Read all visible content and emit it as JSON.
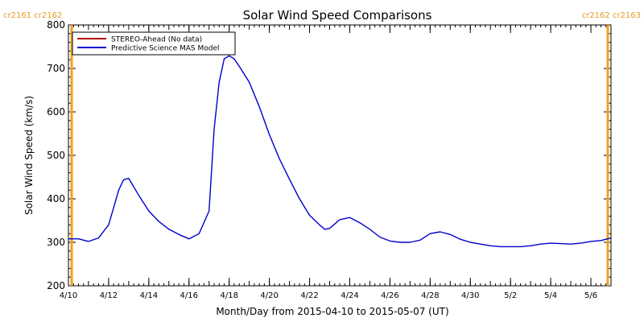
{
  "chart_data": {
    "type": "line",
    "title": "Solar Wind Speed Comparisons",
    "xlabel": "Month/Day from 2015-04-10 to 2015-05-07 (UT)",
    "ylabel": "Solar Wind Speed (km/s)",
    "start_date": "2015-04-10",
    "end_date": "2015-05-07",
    "ylim": [
      200,
      800
    ],
    "y_ticks": [
      "200",
      "300",
      "400",
      "500",
      "600",
      "700",
      "800"
    ],
    "x_ticks": [
      {
        "label": "4/10",
        "date": "2015-04-10"
      },
      {
        "label": "4/12",
        "date": "2015-04-12"
      },
      {
        "label": "4/14",
        "date": "2015-04-14"
      },
      {
        "label": "4/16",
        "date": "2015-04-16"
      },
      {
        "label": "4/18",
        "date": "2015-04-18"
      },
      {
        "label": "4/20",
        "date": "2015-04-20"
      },
      {
        "label": "4/22",
        "date": "2015-04-22"
      },
      {
        "label": "4/24",
        "date": "2015-04-24"
      },
      {
        "label": "4/26",
        "date": "2015-04-26"
      },
      {
        "label": "4/28",
        "date": "2015-04-28"
      },
      {
        "label": "4/30",
        "date": "2015-04-30"
      },
      {
        "label": "5/2",
        "date": "2015-05-02"
      },
      {
        "label": "5/4",
        "date": "2015-05-04"
      },
      {
        "label": "5/6",
        "date": "2015-05-06"
      }
    ],
    "rotation_markers": [
      {
        "date": "2015-04-10",
        "labels": [
          "cr2161",
          "cr2162"
        ],
        "align": "left"
      },
      {
        "date": "2015-05-07",
        "labels": [
          "cr2162",
          "cr2163"
        ],
        "align": "right"
      }
    ],
    "legend_position": "top-left",
    "series": [
      {
        "name": "STEREO-Ahead (No data)",
        "color": "#b00000",
        "x": [],
        "y": []
      },
      {
        "name": "Predictive Science MAS Model",
        "color": "#0000cc",
        "x": [
          "2015-04-10 00:00",
          "2015-04-10 12:00",
          "2015-04-11 00:00",
          "2015-04-11 12:00",
          "2015-04-12 00:00",
          "2015-04-12 06:00",
          "2015-04-12 12:00",
          "2015-04-12 18:00",
          "2015-04-13 00:00",
          "2015-04-13 12:00",
          "2015-04-14 00:00",
          "2015-04-14 12:00",
          "2015-04-15 00:00",
          "2015-04-15 12:00",
          "2015-04-16 00:00",
          "2015-04-16 12:00",
          "2015-04-17 00:00",
          "2015-04-17 06:00",
          "2015-04-17 12:00",
          "2015-04-17 18:00",
          "2015-04-18 00:00",
          "2015-04-18 06:00",
          "2015-04-18 12:00",
          "2015-04-19 00:00",
          "2015-04-19 12:00",
          "2015-04-20 00:00",
          "2015-04-20 12:00",
          "2015-04-21 00:00",
          "2015-04-21 12:00",
          "2015-04-22 00:00",
          "2015-04-22 12:00",
          "2015-04-22 18:00",
          "2015-04-23 00:00",
          "2015-04-23 12:00",
          "2015-04-24 00:00",
          "2015-04-24 12:00",
          "2015-04-25 00:00",
          "2015-04-25 12:00",
          "2015-04-26 00:00",
          "2015-04-26 12:00",
          "2015-04-27 00:00",
          "2015-04-27 12:00",
          "2015-04-28 00:00",
          "2015-04-28 12:00",
          "2015-04-29 00:00",
          "2015-04-29 12:00",
          "2015-04-30 00:00",
          "2015-04-30 12:00",
          "2015-05-01 00:00",
          "2015-05-01 12:00",
          "2015-05-02 00:00",
          "2015-05-02 12:00",
          "2015-05-03 00:00",
          "2015-05-03 12:00",
          "2015-05-04 00:00",
          "2015-05-04 12:00",
          "2015-05-05 00:00",
          "2015-05-05 12:00",
          "2015-05-06 00:00",
          "2015-05-06 12:00",
          "2015-05-07 00:00"
        ],
        "y": [
          308,
          308,
          302,
          310,
          340,
          380,
          420,
          444,
          447,
          408,
          372,
          348,
          330,
          318,
          308,
          320,
          372,
          560,
          668,
          722,
          729,
          722,
          705,
          668,
          612,
          548,
          492,
          445,
          400,
          362,
          340,
          330,
          332,
          352,
          357,
          345,
          330,
          312,
          303,
          300,
          300,
          305,
          320,
          324,
          318,
          307,
          300,
          296,
          292,
          290,
          290,
          290,
          292,
          296,
          298,
          297,
          296,
          298,
          302,
          304,
          310
        ]
      }
    ]
  }
}
